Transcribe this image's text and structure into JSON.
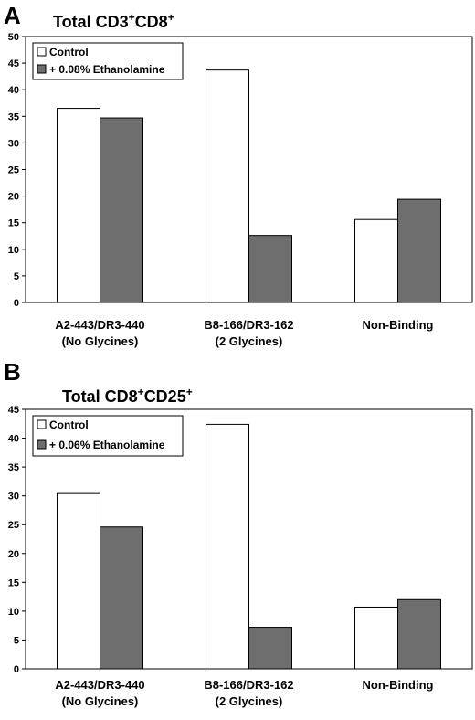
{
  "charts": [
    {
      "panel": "A",
      "title_main": "Total CD3",
      "title_sup1": "+",
      "title_mid": "CD8",
      "title_sup2": "+",
      "chart_data": {
        "type": "bar",
        "categories": [
          "A2-443/DR3-440",
          "B8-166/DR3-162",
          "Non-Binding"
        ],
        "category_sublabels": [
          "(No Glycines)",
          "(2 Glycines)",
          ""
        ],
        "series": [
          {
            "name": "Control",
            "values": [
              36.5,
              43.7,
              15.6
            ],
            "color": "#ffffff"
          },
          {
            "name": "+ 0.08% Ethanolamine",
            "values": [
              34.7,
              12.6,
              19.4
            ],
            "color": "#6e6e6e"
          }
        ],
        "ylim": [
          0,
          50
        ],
        "yticks": [
          0,
          5,
          10,
          15,
          20,
          25,
          30,
          35,
          40,
          45,
          50
        ],
        "legend_position": "top-left",
        "grid": false
      }
    },
    {
      "panel": "B",
      "title_main": "Total CD8",
      "title_sup1": "+",
      "title_mid": "CD25",
      "title_sup2": "+",
      "chart_data": {
        "type": "bar",
        "categories": [
          "A2-443/DR3-440",
          "B8-166/DR3-162",
          "Non-Binding"
        ],
        "category_sublabels": [
          "(No Glycines)",
          "(2 Glycines)",
          ""
        ],
        "series": [
          {
            "name": "Control",
            "values": [
              30.4,
              42.4,
              10.7
            ],
            "color": "#ffffff"
          },
          {
            "name": "+ 0.06% Ethanolamine",
            "values": [
              24.6,
              7.2,
              12.0
            ],
            "color": "#6e6e6e"
          }
        ],
        "ylim": [
          0,
          45
        ],
        "yticks": [
          0,
          5,
          10,
          15,
          20,
          25,
          30,
          35,
          40,
          45
        ],
        "legend_position": "top-left",
        "grid": false
      }
    }
  ]
}
